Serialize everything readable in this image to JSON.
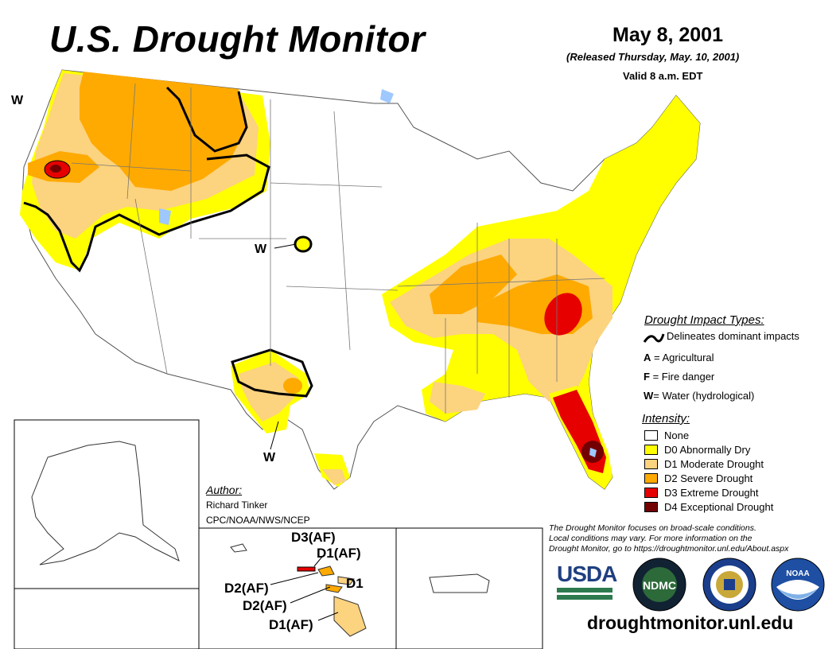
{
  "header": {
    "title": "U.S. Drought Monitor",
    "date": "May 8, 2001",
    "released": "(Released Thursday, May. 10, 2001)",
    "valid": "Valid 8 a.m. EDT"
  },
  "impact_legend": {
    "heading": "Drought Impact Types:",
    "delineates": "Delineates dominant impacts",
    "items": [
      {
        "key": "A",
        "label": "= Agricultural"
      },
      {
        "key": "F",
        "label": "= Fire danger"
      },
      {
        "key": "W",
        "label": "= Water (hydrological)"
      }
    ]
  },
  "intensity_legend": {
    "heading": "Intensity:",
    "items": [
      {
        "label": "None",
        "color": "#ffffff"
      },
      {
        "label": "D0 Abnormally Dry",
        "color": "#ffff00"
      },
      {
        "label": "D1 Moderate Drought",
        "color": "#fcd37f"
      },
      {
        "label": "D2 Severe Drought",
        "color": "#ffaa00"
      },
      {
        "label": "D3 Extreme Drought",
        "color": "#e60000"
      },
      {
        "label": "D4 Exceptional Drought",
        "color": "#730000"
      }
    ]
  },
  "author": {
    "heading": "Author:",
    "name": "Richard Tinker",
    "org": "CPC/NOAA/NWS/NCEP"
  },
  "map_labels": {
    "w_labels": [
      "W",
      "W",
      "W"
    ],
    "hawaii": [
      "D3(AF)",
      "D1(AF)",
      "D2(AF)",
      "D1",
      "D2(AF)",
      "D1(AF)"
    ]
  },
  "note": {
    "line1": "The Drought Monitor focuses on broad-scale conditions.",
    "line2": "Local conditions may vary. For more information on the",
    "line3": "Drought Monitor, go to https://droughtmonitor.unl.edu/About.aspx"
  },
  "logos": {
    "usda": "USDA",
    "ndmc": "NDMC",
    "noaa": "NOAA"
  },
  "website": "droughtmonitor.unl.edu"
}
